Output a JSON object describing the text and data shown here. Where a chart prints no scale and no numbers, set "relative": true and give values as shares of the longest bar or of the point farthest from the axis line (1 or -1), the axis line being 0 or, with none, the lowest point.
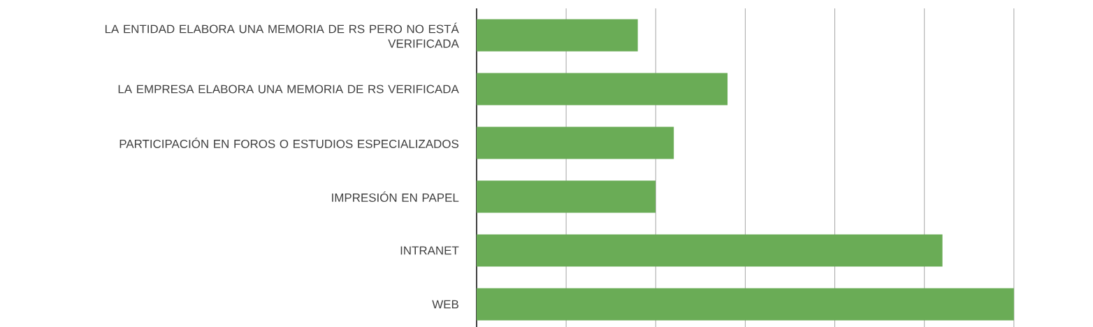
{
  "chart_data": {
    "type": "bar",
    "orientation": "horizontal",
    "relative": true,
    "grid": "x",
    "color": "#6aac56",
    "categories": [
      "LA ENTIDAD ELABORA UNA MEMORIA DE RS PERO NO ESTÁ VERIFICADA",
      "LA EMPRESA ELABORA UNA MEMORIA DE RS VERIFICADA",
      "PARTICIPACIÓN EN FOROS O ESTUDIOS ESPECIALIZADOS",
      "IMPRESIÓN EN PAPEL",
      "INTRANET",
      "WEB"
    ],
    "values": [
      0.3,
      0.467,
      0.367,
      0.333,
      0.867,
      1
    ]
  }
}
